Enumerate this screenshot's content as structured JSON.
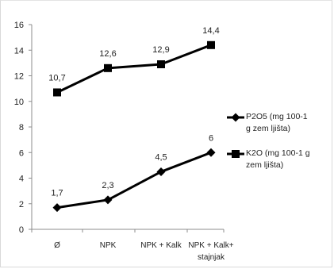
{
  "chart_data": {
    "type": "line",
    "categories": [
      "Ø",
      "NPK",
      "NPK + Kalk",
      "NPK + Kalk+ stajnjak"
    ],
    "category_lines": [
      [
        "Ø"
      ],
      [
        "NPK"
      ],
      [
        "NPK + Kalk"
      ],
      [
        "NPK + Kalk+",
        "stajnjak"
      ]
    ],
    "ylim": [
      0,
      16
    ],
    "yticks": [
      0,
      2,
      4,
      6,
      8,
      10,
      12,
      14,
      16
    ],
    "grid": false,
    "legend_position": "right",
    "series": [
      {
        "name": "P2O5 (mg 100-1 g zem ljišta)",
        "legend_lines": [
          "P2O5 (mg 100-1",
          "g zem ljišta)"
        ],
        "marker": "diamond",
        "color": "#000000",
        "values": [
          1.7,
          2.3,
          4.5,
          6
        ],
        "labels": [
          "1,7",
          "2,3",
          "4,5",
          "6"
        ]
      },
      {
        "name": "K2O (mg 100-1 g zem ljišta)",
        "legend_lines": [
          "K2O (mg 100-1 g",
          "zem ljišta)"
        ],
        "marker": "square",
        "color": "#000000",
        "values": [
          10.7,
          12.6,
          12.9,
          14.4
        ],
        "labels": [
          "10,7",
          "12,6",
          "12,9",
          "14,4"
        ]
      }
    ]
  }
}
